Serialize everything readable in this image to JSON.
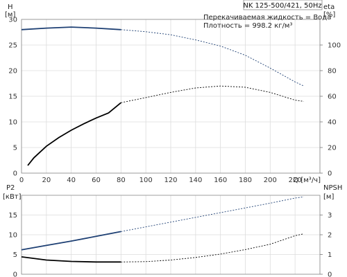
{
  "chart_data": [
    {
      "type": "line",
      "title": "NK 125-500/421, 50Hz",
      "annotations": [
        "Перекачиваемая жидкость = Вода",
        "Плотность = 998.2 кг/м³"
      ],
      "xlabel": "Q [м³/ч]",
      "xlim": [
        0,
        240
      ],
      "x_ticks": [
        "0",
        "20",
        "40",
        "60",
        "80",
        "100",
        "120",
        "140",
        "160",
        "180",
        "200",
        "220"
      ],
      "y_left": {
        "label_1": "H",
        "label_2": "[м]",
        "lim": [
          0,
          30
        ],
        "ticks": [
          "0",
          "5",
          "10",
          "15",
          "20",
          "25",
          "30"
        ]
      },
      "y_right": {
        "label_1": "eta",
        "label_2": "[%]",
        "lim": [
          0,
          120
        ],
        "ticks": [
          "0",
          "20",
          "40",
          "60",
          "80",
          "100"
        ]
      },
      "grid": true,
      "series": [
        {
          "axis": "left",
          "color": "#1d3f73",
          "solid": [
            [
              0,
              28
            ],
            [
              20,
              28.3
            ],
            [
              40,
              28.5
            ],
            [
              60,
              28.3
            ],
            [
              80,
              28
            ]
          ],
          "dashed": [
            [
              80,
              28
            ],
            [
              100,
              27.6
            ],
            [
              120,
              27
            ],
            [
              140,
              26
            ],
            [
              160,
              24.8
            ],
            [
              180,
              23
            ],
            [
              200,
              20.5
            ],
            [
              220,
              17.8
            ],
            [
              227,
              17
            ]
          ]
        },
        {
          "axis": "right",
          "color": "#000000",
          "solid": [
            [
              5,
              6
            ],
            [
              10,
              12
            ],
            [
              20,
              21
            ],
            [
              30,
              27.8
            ],
            [
              40,
              33.5
            ],
            [
              50,
              38.5
            ],
            [
              60,
              43
            ],
            [
              70,
              47
            ],
            [
              80,
              55
            ]
          ],
          "dashed": [
            [
              80,
              55
            ],
            [
              100,
              59
            ],
            [
              120,
              63
            ],
            [
              140,
              66.5
            ],
            [
              160,
              68
            ],
            [
              180,
              67
            ],
            [
              200,
              63
            ],
            [
              220,
              57
            ],
            [
              227,
              56
            ]
          ]
        }
      ]
    },
    {
      "type": "line",
      "xlim": [
        0,
        240
      ],
      "y_left": {
        "label_1": "P2",
        "label_2": "[кВт]",
        "lim": [
          0,
          20
        ],
        "ticks": [
          "0",
          "5",
          "10",
          "15"
        ]
      },
      "y_right": {
        "label_1": "NPSH",
        "label_2": "[м]",
        "lim": [
          0,
          4
        ],
        "ticks": [
          "0",
          "1",
          "2",
          "3"
        ]
      },
      "grid": true,
      "series": [
        {
          "axis": "left",
          "color": "#1d3f73",
          "solid": [
            [
              0,
              6.2
            ],
            [
              20,
              7.3
            ],
            [
              40,
              8.4
            ],
            [
              60,
              9.6
            ],
            [
              80,
              10.8
            ]
          ],
          "dashed": [
            [
              80,
              10.8
            ],
            [
              100,
              12
            ],
            [
              120,
              13.2
            ],
            [
              140,
              14.4
            ],
            [
              160,
              15.6
            ],
            [
              180,
              16.8
            ],
            [
              200,
              18
            ],
            [
              220,
              19.3
            ],
            [
              227,
              19.6
            ]
          ]
        },
        {
          "axis": "right",
          "color": "#000000",
          "solid": [
            [
              0,
              0.88
            ],
            [
              20,
              0.72
            ],
            [
              40,
              0.65
            ],
            [
              60,
              0.62
            ],
            [
              80,
              0.62
            ]
          ],
          "dashed": [
            [
              80,
              0.62
            ],
            [
              100,
              0.64
            ],
            [
              120,
              0.72
            ],
            [
              140,
              0.85
            ],
            [
              160,
              1.02
            ],
            [
              180,
              1.25
            ],
            [
              200,
              1.52
            ],
            [
              220,
              1.95
            ],
            [
              227,
              2.05
            ]
          ]
        }
      ]
    }
  ]
}
